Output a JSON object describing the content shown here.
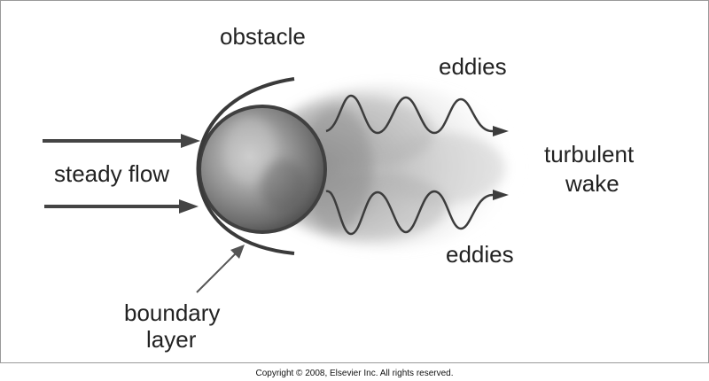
{
  "labels": {
    "obstacle": "obstacle",
    "eddies_top": "eddies",
    "eddies_bottom": "eddies",
    "steady_flow": "steady flow",
    "turbulent_line1": "turbulent",
    "turbulent_line2": "wake",
    "boundary_line1": "boundary",
    "boundary_line2": "layer"
  },
  "footer": {
    "copyright": "Copyright © 2008, Elsevier Inc. All rights reserved."
  }
}
